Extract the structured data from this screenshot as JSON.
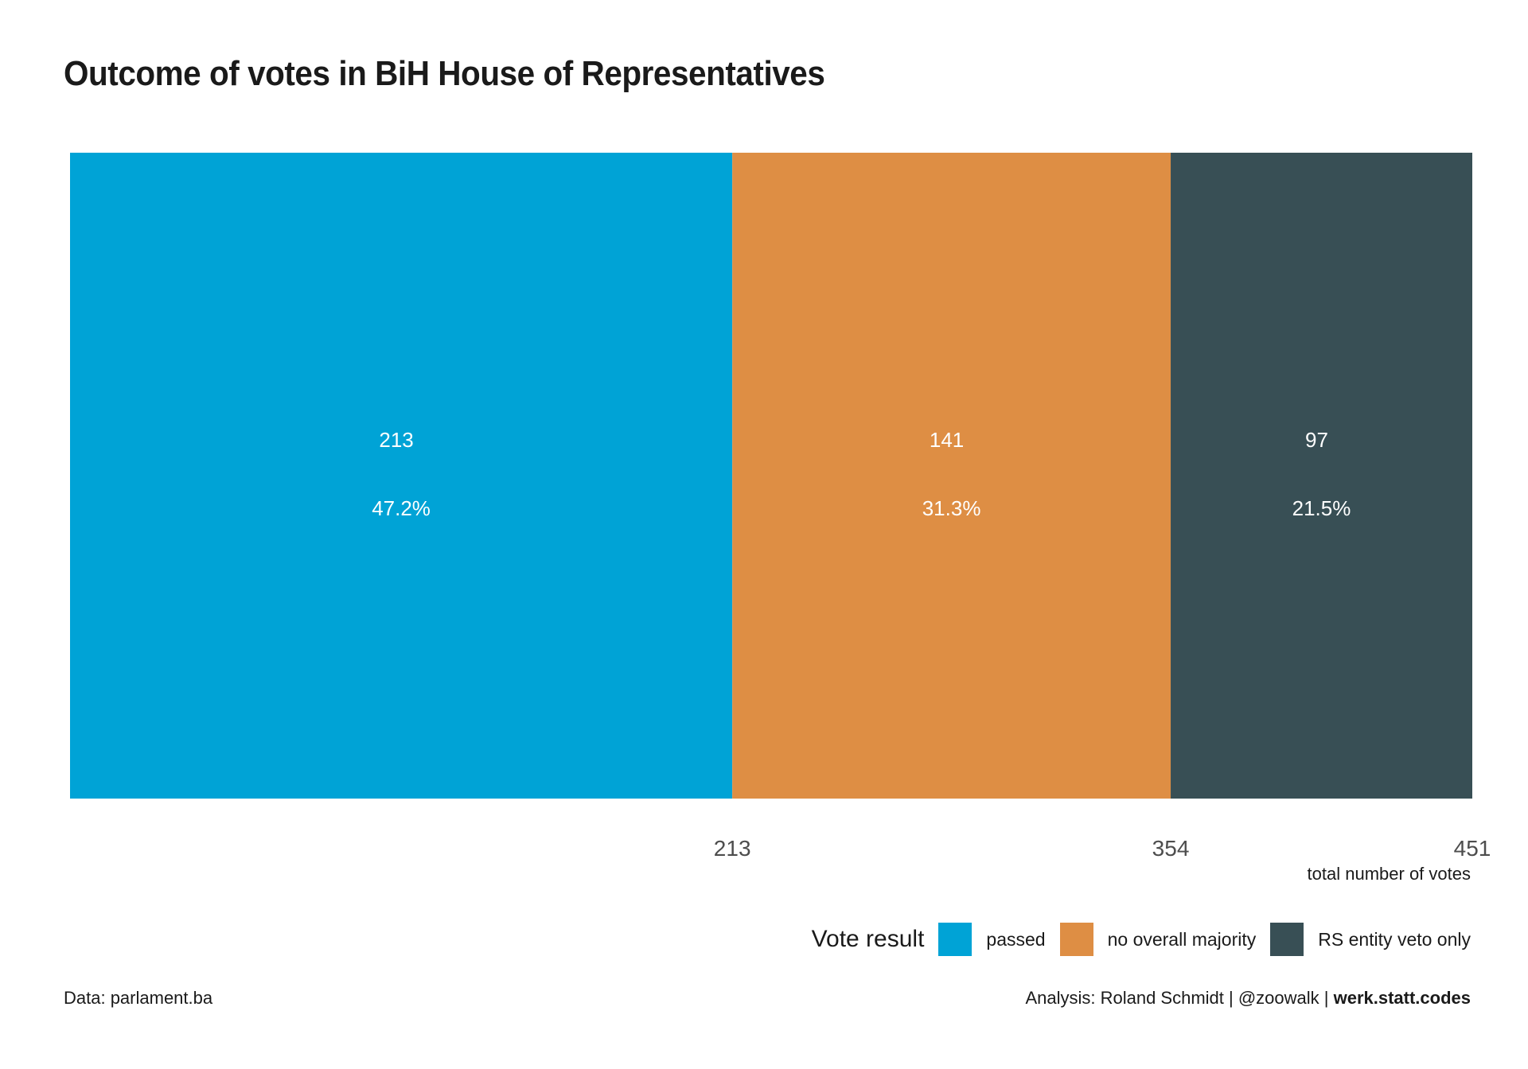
{
  "title": "Outcome of votes in BiH House of Representatives",
  "chart_data": {
    "type": "bar",
    "orientation": "horizontal-stacked",
    "title": "Outcome of votes in BiH House of Representatives",
    "xlabel": "total number of votes",
    "ylabel": "",
    "xlim": [
      0,
      451
    ],
    "x_ticks": [
      213,
      354,
      451
    ],
    "grid": false,
    "legend_position": "bottom-right",
    "series": [
      {
        "name": "passed",
        "value": 213,
        "percent_label": "47.2%",
        "color": "#00A3D6"
      },
      {
        "name": "no overall majority",
        "value": 141,
        "percent_label": "31.3%",
        "color": "#DE8E44"
      },
      {
        "name": "RS entity veto only",
        "value": 97,
        "percent_label": "21.5%",
        "color": "#384F55"
      }
    ]
  },
  "legend": {
    "title": "Vote result",
    "items": [
      {
        "label": "passed",
        "color": "#00A3D6"
      },
      {
        "label": "no overall majority",
        "color": "#DE8E44"
      },
      {
        "label": "RS entity veto only",
        "color": "#384F55"
      }
    ]
  },
  "footer": {
    "source": "Data: parlament.ba",
    "analysis": "Analysis: Roland Schmidt | @zoowalk | ",
    "brand": "werk.statt.codes"
  }
}
